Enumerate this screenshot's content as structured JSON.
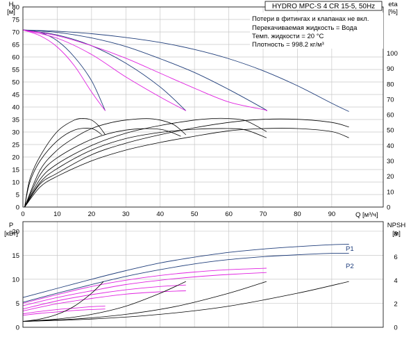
{
  "chart_data": [
    {
      "type": "line",
      "title": "HYDRO MPC-S 4 CR 15-5, 50Hz",
      "annotations": [
        "Потери в фитингах и клапанах не вкл.",
        "Перекачиваемая жидкость = Вода",
        "Темп. жидкости = 20 °C",
        "Плотность = 998.2 кг/м³"
      ],
      "xlabel": "Q [м³/ч]",
      "ylabel": "H",
      "ylabel_unit": "[м]",
      "y2label": "eta",
      "y2label_unit": "[%]",
      "xlim": [
        0,
        105
      ],
      "ylim": [
        0,
        80
      ],
      "y2lim": [
        0,
        130
      ],
      "grid": true,
      "x_ticks": [
        0,
        10,
        20,
        30,
        40,
        50,
        60,
        70,
        80,
        90
      ],
      "y_ticks": [
        0,
        5,
        10,
        15,
        20,
        25,
        30,
        35,
        40,
        45,
        50,
        55,
        60,
        65,
        70,
        75,
        80
      ],
      "y2_ticks": [
        0,
        10,
        20,
        30,
        40,
        50,
        60,
        70,
        80,
        90,
        100
      ],
      "head_curves_max_speed": [
        {
          "x": [
            0,
            10,
            20,
            30,
            40,
            50,
            60,
            70,
            80,
            90,
            95
          ],
          "y": [
            70.8,
            70.3,
            69.3,
            67.8,
            65.8,
            63.0,
            59.3,
            54.5,
            48.5,
            41.5,
            38.2
          ]
        },
        {
          "x": [
            0,
            10,
            20,
            30,
            40,
            50,
            60,
            70,
            71
          ],
          "y": [
            70.8,
            69.8,
            67.6,
            64.2,
            59.3,
            53.8,
            47.0,
            39.5,
            38.5
          ]
        },
        {
          "x": [
            0,
            10,
            20,
            30,
            40,
            47.5
          ],
          "y": [
            70.8,
            68.8,
            64.5,
            57.5,
            48.0,
            38.5
          ]
        },
        {
          "x": [
            0,
            5,
            10,
            15,
            20,
            24
          ],
          "y": [
            70.8,
            69.8,
            66.5,
            60.0,
            50.5,
            38.5
          ]
        }
      ],
      "head_curves_reduced_speed": [
        {
          "x": [
            0,
            5,
            10,
            15,
            20,
            24
          ],
          "y": [
            70.8,
            68.5,
            64.0,
            56.5,
            46.0,
            38.5
          ]
        },
        {
          "x": [
            0,
            10,
            20,
            30,
            40,
            47.5
          ],
          "y": [
            70.8,
            67.5,
            61.0,
            52.0,
            44.0,
            38.5
          ]
        },
        {
          "x": [
            0,
            10,
            20,
            30,
            40,
            50,
            60,
            70,
            71
          ],
          "y": [
            70.8,
            68.5,
            64.5,
            59.5,
            53.5,
            47.5,
            42.0,
            39.0,
            38.5
          ]
        }
      ],
      "efficiency_curves": [
        {
          "x": [
            0.5,
            2,
            5,
            10,
            15,
            18,
            20,
            22,
            24
          ],
          "y": [
            0,
            18,
            33,
            49,
            56.5,
            57.5,
            56.5,
            53,
            47
          ]
        },
        {
          "x": [
            0.5,
            2,
            5,
            10,
            15,
            20,
            23
          ],
          "y": [
            0,
            16,
            30,
            43,
            50,
            51,
            47
          ]
        },
        {
          "x": [
            0.5,
            5,
            10,
            15,
            20,
            25,
            30,
            36,
            40,
            44,
            47.5
          ],
          "y": [
            0,
            24,
            37,
            45,
            51,
            54.5,
            56.5,
            57.5,
            56.5,
            53.5,
            47
          ]
        },
        {
          "x": [
            0.5,
            5,
            10,
            20,
            30,
            40,
            46
          ],
          "y": [
            0,
            21,
            32,
            44,
            50,
            50.5,
            46
          ]
        },
        {
          "x": [
            0.5,
            5,
            10,
            20,
            30,
            40,
            50,
            55,
            60,
            65,
            71
          ],
          "y": [
            0,
            18,
            28,
            40,
            48,
            53,
            56.5,
            57.5,
            57.5,
            56,
            49
          ]
        },
        {
          "x": [
            0.5,
            5,
            10,
            20,
            30,
            40,
            50,
            60,
            65,
            71
          ],
          "y": [
            0,
            16,
            25,
            37,
            44.5,
            48.5,
            50.5,
            51,
            50,
            45
          ]
        },
        {
          "x": [
            0.5,
            5,
            10,
            20,
            30,
            40,
            50,
            60,
            70,
            80,
            90,
            95
          ],
          "y": [
            0,
            15,
            22,
            34,
            41.5,
            47,
            51.5,
            55,
            57,
            57,
            55,
            52
          ]
        },
        {
          "x": [
            0.5,
            5,
            10,
            20,
            30,
            40,
            50,
            60,
            70,
            80,
            90,
            95
          ],
          "y": [
            0,
            13,
            20,
            30,
            37,
            42,
            46,
            49.5,
            51,
            51,
            49,
            45
          ]
        }
      ]
    },
    {
      "type": "line",
      "xlabel": "",
      "ylabel": "P",
      "ylabel_unit": "[кВт]",
      "y2label": "NPSH",
      "y2label_unit": "[м]",
      "xlim": [
        0,
        105
      ],
      "ylim": [
        0,
        22
      ],
      "y2lim": [
        0,
        9
      ],
      "grid": true,
      "y_ticks": [
        0,
        5,
        10,
        15,
        20
      ],
      "y2_ticks": [
        0,
        2,
        4,
        6,
        8
      ],
      "series": [
        {
          "name": "P1",
          "x": [
            0,
            10,
            20,
            30,
            40,
            50,
            60,
            70,
            80,
            90,
            95
          ],
          "y": [
            6.2,
            8.1,
            10.0,
            11.8,
            13.4,
            14.6,
            15.6,
            16.3,
            16.8,
            17.2,
            17.3
          ]
        },
        {
          "name": "P2",
          "x": [
            0,
            10,
            20,
            30,
            40,
            50,
            60,
            70,
            80,
            90,
            95
          ],
          "y": [
            5.2,
            7.1,
            8.9,
            10.6,
            12.0,
            13.2,
            14.1,
            14.7,
            15.1,
            15.4,
            15.4
          ]
        }
      ],
      "power_curves_partial": [
        {
          "x": [
            0,
            10,
            20,
            30,
            40,
            50,
            60,
            71
          ],
          "y": [
            5.0,
            6.8,
            8.5,
            9.8,
            10.8,
            11.5,
            12.0,
            12.3
          ]
        },
        {
          "x": [
            0,
            10,
            20,
            30,
            40,
            50,
            60,
            71
          ],
          "y": [
            4.5,
            6.2,
            7.6,
            8.9,
            9.8,
            10.5,
            11.0,
            11.4
          ]
        },
        {
          "x": [
            0,
            10,
            20,
            30,
            40,
            47.5
          ],
          "y": [
            3.8,
            5.5,
            6.8,
            7.8,
            8.5,
            8.8
          ]
        },
        {
          "x": [
            0,
            10,
            20,
            30,
            40,
            47.5
          ],
          "y": [
            3.4,
            4.9,
            6.0,
            6.9,
            7.4,
            7.6
          ]
        },
        {
          "x": [
            0,
            5,
            10,
            15,
            20,
            24
          ],
          "y": [
            2.8,
            3.3,
            3.7,
            4.0,
            4.3,
            4.4
          ]
        },
        {
          "x": [
            0,
            5,
            10,
            15,
            20,
            24
          ],
          "y": [
            2.5,
            2.9,
            3.2,
            3.5,
            3.7,
            3.8
          ]
        }
      ],
      "npsh_curves": [
        {
          "x": [
            0,
            5,
            10,
            15,
            20,
            23.5
          ],
          "y": [
            0.5,
            0.7,
            1.1,
            1.8,
            2.9,
            3.9
          ]
        },
        {
          "x": [
            0,
            10,
            20,
            30,
            40,
            47.5
          ],
          "y": [
            0.5,
            0.7,
            1.1,
            1.8,
            2.9,
            3.9
          ]
        },
        {
          "x": [
            0,
            15,
            30,
            45,
            60,
            71
          ],
          "y": [
            0.5,
            0.7,
            1.1,
            1.8,
            2.9,
            3.9
          ]
        },
        {
          "x": [
            0,
            20,
            40,
            60,
            80,
            95
          ],
          "y": [
            0.5,
            0.7,
            1.1,
            1.8,
            2.9,
            3.9
          ]
        }
      ]
    }
  ]
}
